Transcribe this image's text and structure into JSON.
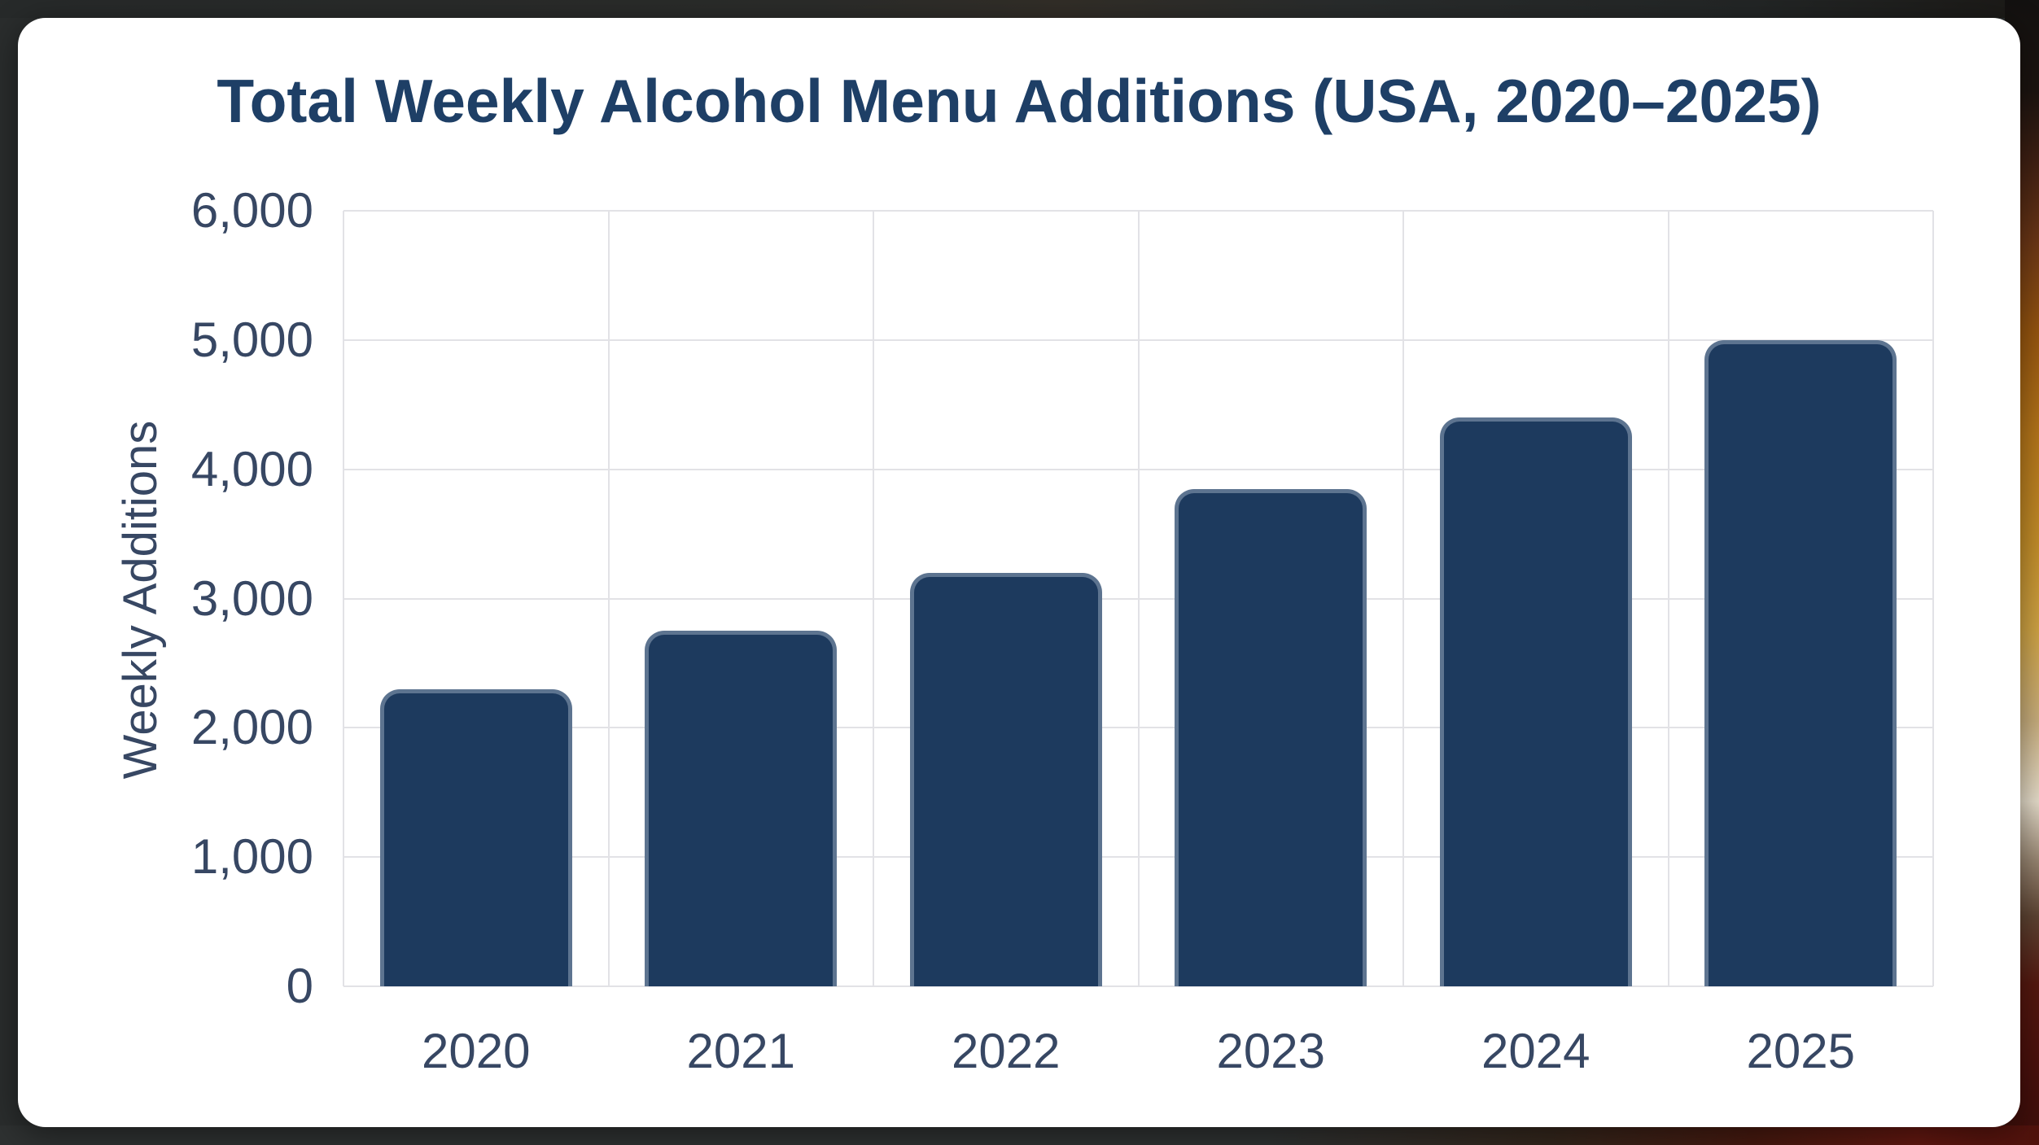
{
  "chart_data": {
    "type": "bar",
    "title": "Total Weekly Alcohol Menu Additions (USA, 2020–2025)",
    "xlabel": "",
    "ylabel": "Weekly Additions",
    "categories": [
      "2020",
      "2021",
      "2022",
      "2023",
      "2024",
      "2025"
    ],
    "values": [
      2300,
      2750,
      3200,
      3850,
      4400,
      5000
    ],
    "ylim": [
      0,
      6000
    ],
    "ytick_step": 1000,
    "ytick_labels": [
      "0",
      "1,000",
      "2,000",
      "3,000",
      "4,000",
      "5,000",
      "6,000"
    ],
    "grid": true,
    "legend": false,
    "colors": {
      "bar": "#1d3a5e",
      "bar_border": "rgba(147,164,186,0.55)",
      "title": "#1e3f66",
      "ticks": "#374763",
      "gridlines": "#e2e2e6",
      "card_background": "#ffffff",
      "page_background": "#2a2d2d"
    }
  }
}
